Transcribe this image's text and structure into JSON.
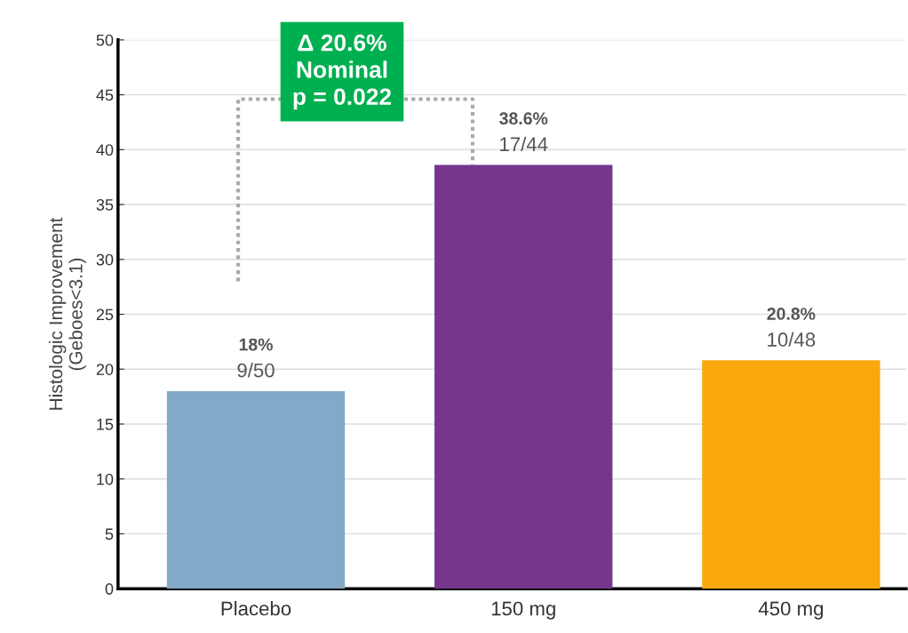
{
  "chart_data": {
    "type": "bar",
    "ylabel": "Histologic Improvement\n(Geboes<3.1)",
    "categories": [
      "Placebo",
      "150 mg",
      "450 mg"
    ],
    "values": [
      18,
      38.6,
      20.8
    ],
    "colors": [
      "#82a9c7",
      "#75368b",
      "#f8a80c"
    ],
    "value_labels": [
      "18%\n9/50",
      "38.6%\n17/44",
      "20.8%\n10/48"
    ],
    "annotations": [
      "Δ 20.6%\nNominal\np = 0.022"
    ],
    "ylim": [
      0,
      50
    ],
    "yticks": [
      0,
      5,
      10,
      15,
      20,
      25,
      30,
      35,
      40,
      45,
      50
    ],
    "grid": "y"
  }
}
